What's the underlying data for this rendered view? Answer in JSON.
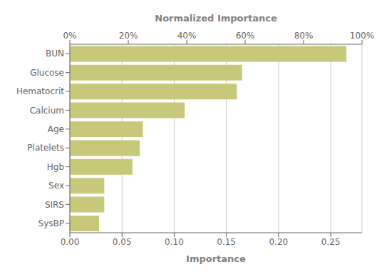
{
  "chart_data": {
    "type": "bar",
    "orientation": "horizontal",
    "categories": [
      "SysBP",
      "SIRS",
      "Sex",
      "Hgb",
      "Platelets",
      "Age",
      "Calcium",
      "Hematocrit",
      "Glucose",
      "BUN"
    ],
    "values": [
      0.028,
      0.033,
      0.033,
      0.06,
      0.067,
      0.07,
      0.11,
      0.16,
      0.165,
      0.265
    ],
    "color": "#c8c87a",
    "xlabel": "Importance",
    "xlim": [
      0.0,
      0.28
    ],
    "xticks": [
      {
        "value": 0.0,
        "label": "0.00"
      },
      0.05,
      {
        "value": 0.1,
        "label": "0.10"
      },
      0.15,
      {
        "value": 0.2,
        "label": "0.20"
      },
      0.25
    ],
    "x2label": "Normalized Importance",
    "x2lim": [
      0.0,
      100.0
    ],
    "x2ticks": [
      {
        "value": 0,
        "label": "0%"
      },
      {
        "value": 20,
        "label": "20%"
      },
      {
        "value": 40,
        "label": "40%"
      },
      {
        "value": 60,
        "label": "60%"
      },
      {
        "value": 80,
        "label": "80%"
      },
      {
        "value": 100,
        "label": "100%"
      }
    ],
    "grid": true
  }
}
